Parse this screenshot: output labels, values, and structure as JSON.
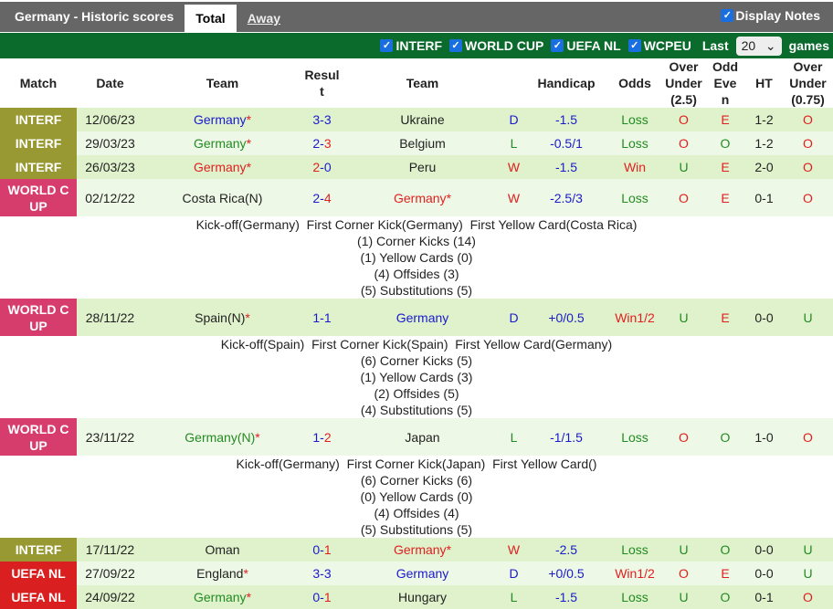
{
  "header": {
    "title": "Germany - Historic scores",
    "tabs": [
      "Total",
      "Away"
    ],
    "display_notes": "Display Notes"
  },
  "filters": {
    "items": [
      "INTERF",
      "WORLD CUP",
      "UEFA NL",
      "WCPEU"
    ],
    "last_label": "Last",
    "last_value": "20",
    "games_label": "games"
  },
  "columns": [
    "Match",
    "Date",
    "Team",
    "Resul t",
    "Team",
    "",
    "Handicap",
    "Odds",
    "Over Under (2.5)",
    "Odd Eve n",
    "HT",
    "Over Under (0.75)"
  ],
  "colors": {
    "INTERF": "#999933",
    "WORLD CUP": "#d63c6c",
    "UEFA NL": "#d91f1f",
    "header": "#666666",
    "filter_bar": "#0b6b2d"
  },
  "rows": [
    {
      "match": "INTERF",
      "cls": "INTERF",
      "date": "12/06/23",
      "home": "Germany",
      "hs": "*",
      "hc": "b",
      "s1": "3",
      "s2": "3",
      "c1": "b",
      "c2": "b",
      "away": "Ukraine",
      "as": "",
      "ac": "k",
      "res": "D",
      "rc": "b",
      "hcap": "-1.5",
      "odds": "Loss",
      "oc": "g",
      "ou": "O",
      "ouc": "r",
      "oe": "E",
      "oec": "r",
      "ht": "1-2",
      "ou2": "O",
      "ou2c": "r"
    },
    {
      "match": "INTERF",
      "cls": "INTERF",
      "date": "29/03/23",
      "home": "Germany",
      "hs": "*",
      "hc": "g",
      "s1": "2",
      "s2": "3",
      "c1": "b",
      "c2": "r",
      "away": "Belgium",
      "as": "",
      "ac": "k",
      "res": "L",
      "rc": "g",
      "hcap": "-0.5/1",
      "odds": "Loss",
      "oc": "g",
      "ou": "O",
      "ouc": "r",
      "oe": "O",
      "oec": "g",
      "ht": "1-2",
      "ou2": "O",
      "ou2c": "r"
    },
    {
      "match": "INTERF",
      "cls": "INTERF",
      "date": "26/03/23",
      "home": "Germany",
      "hs": "*",
      "hc": "r",
      "s1": "2",
      "s2": "0",
      "c1": "r",
      "c2": "b",
      "away": "Peru",
      "as": "",
      "ac": "k",
      "res": "W",
      "rc": "r",
      "hcap": "-1.5",
      "odds": "Win",
      "oc": "r",
      "ou": "U",
      "ouc": "g",
      "oe": "E",
      "oec": "r",
      "ht": "2-0",
      "ou2": "O",
      "ou2c": "r"
    },
    {
      "match": "WORLD CUP",
      "cls": "WC",
      "date": "02/12/22",
      "home": "Costa Rica(N)",
      "hs": "",
      "hc": "k",
      "s1": "2",
      "s2": "4",
      "c1": "b",
      "c2": "r",
      "away": "Germany",
      "as": "*",
      "ac": "r",
      "res": "W",
      "rc": "r",
      "hcap": "-2.5/3",
      "odds": "Loss",
      "oc": "g",
      "ou": "O",
      "ouc": "r",
      "oe": "E",
      "oec": "r",
      "ht": "0-1",
      "ou2": "O",
      "ou2c": "r",
      "notes": [
        "Kick-off(Germany)  First Corner Kick(Germany)  First Yellow Card(Costa Rica)",
        "(1) Corner Kicks (14)",
        "(1) Yellow Cards (0)",
        "(4) Offsides (3)",
        "(5) Substitutions (5)"
      ]
    },
    {
      "match": "WORLD CUP",
      "cls": "WC",
      "date": "28/11/22",
      "home": "Spain(N)",
      "hs": "*",
      "hc": "k",
      "s1": "1",
      "s2": "1",
      "c1": "b",
      "c2": "b",
      "away": "Germany",
      "as": "",
      "ac": "b",
      "res": "D",
      "rc": "b",
      "hcap": "+0/0.5",
      "odds": "Win1/2",
      "oc": "r",
      "ou": "U",
      "ouc": "g",
      "oe": "E",
      "oec": "r",
      "ht": "0-0",
      "ou2": "U",
      "ou2c": "g",
      "notes": [
        "Kick-off(Spain)  First Corner Kick(Spain)  First Yellow Card(Germany)",
        "(6) Corner Kicks (5)",
        "(1) Yellow Cards (3)",
        "(2) Offsides (5)",
        "(4) Substitutions (5)"
      ]
    },
    {
      "match": "WORLD CUP",
      "cls": "WC",
      "date": "23/11/22",
      "home": "Germany(N)",
      "hs": "*",
      "hc": "g",
      "s1": "1",
      "s2": "2",
      "c1": "b",
      "c2": "r",
      "away": "Japan",
      "as": "",
      "ac": "k",
      "res": "L",
      "rc": "g",
      "hcap": "-1/1.5",
      "odds": "Loss",
      "oc": "g",
      "ou": "O",
      "ouc": "r",
      "oe": "O",
      "oec": "g",
      "ht": "1-0",
      "ou2": "O",
      "ou2c": "r",
      "notes": [
        "Kick-off(Germany)  First Corner Kick(Japan)  First Yellow Card()",
        "(6) Corner Kicks (6)",
        "(0) Yellow Cards (0)",
        "(4) Offsides (4)",
        "(5) Substitutions (5)"
      ]
    },
    {
      "match": "INTERF",
      "cls": "INTERF",
      "date": "17/11/22",
      "home": "Oman",
      "hs": "",
      "hc": "k",
      "s1": "0",
      "s2": "1",
      "c1": "b",
      "c2": "r",
      "away": "Germany",
      "as": "*",
      "ac": "r",
      "res": "W",
      "rc": "r",
      "hcap": "-2.5",
      "odds": "Loss",
      "oc": "g",
      "ou": "U",
      "ouc": "g",
      "oe": "O",
      "oec": "g",
      "ht": "0-0",
      "ou2": "U",
      "ou2c": "g"
    },
    {
      "match": "UEFA NL",
      "cls": "NL",
      "date": "27/09/22",
      "home": "England",
      "hs": "*",
      "hc": "k",
      "s1": "3",
      "s2": "3",
      "c1": "b",
      "c2": "b",
      "away": "Germany",
      "as": "",
      "ac": "b",
      "res": "D",
      "rc": "b",
      "hcap": "+0/0.5",
      "odds": "Win1/2",
      "oc": "r",
      "ou": "O",
      "ouc": "r",
      "oe": "E",
      "oec": "r",
      "ht": "0-0",
      "ou2": "U",
      "ou2c": "g"
    },
    {
      "match": "UEFA NL",
      "cls": "NL",
      "date": "24/09/22",
      "home": "Germany",
      "hs": "*",
      "hc": "g",
      "s1": "0",
      "s2": "1",
      "c1": "b",
      "c2": "r",
      "away": "Hungary",
      "as": "",
      "ac": "k",
      "res": "L",
      "rc": "g",
      "hcap": "-1.5",
      "odds": "Loss",
      "oc": "g",
      "ou": "U",
      "ouc": "g",
      "oe": "O",
      "oec": "g",
      "ht": "0-1",
      "ou2": "O",
      "ou2c": "r"
    }
  ]
}
